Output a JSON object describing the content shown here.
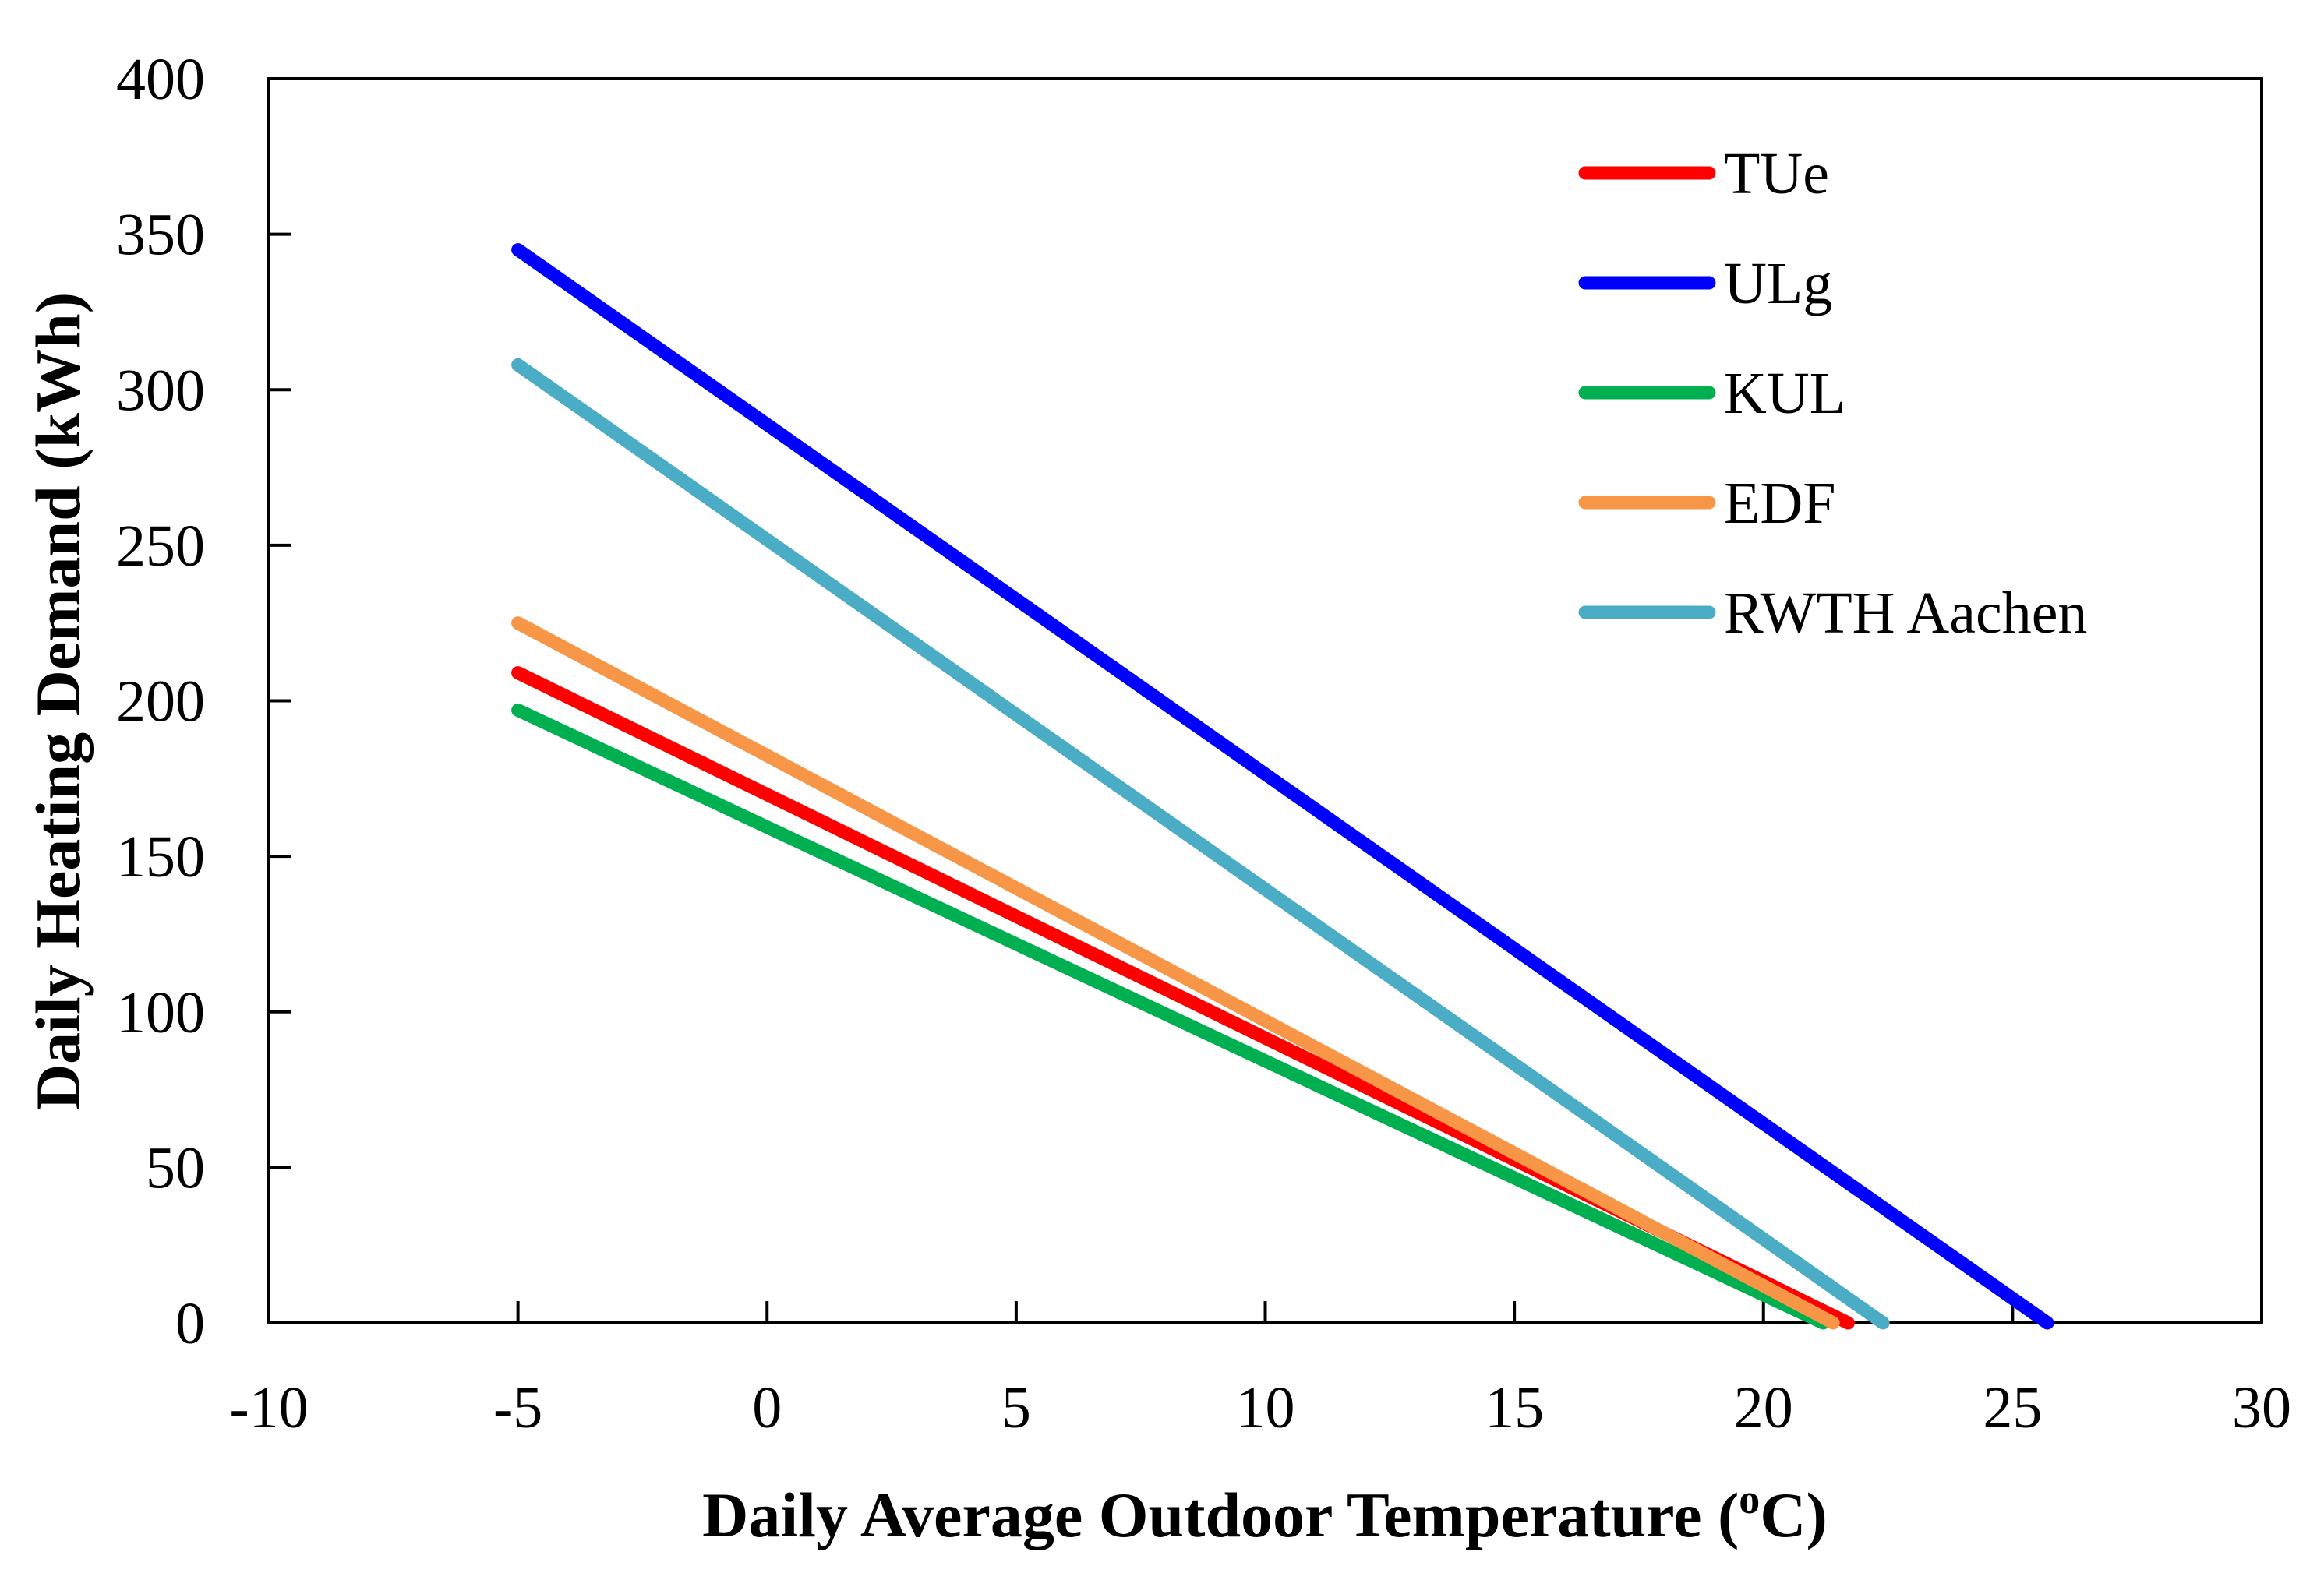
{
  "chart_data": {
    "type": "line",
    "xlabel": "Daily Average Outdoor Temperature (",
    "xlabel_sup": "o",
    "xlabel_unit": "C)",
    "ylabel": "Daily Heating Demand (kWh)",
    "xlim": [
      -10,
      30
    ],
    "ylim": [
      0,
      400
    ],
    "x_ticks": [
      -10,
      -5,
      0,
      5,
      10,
      15,
      20,
      25,
      30
    ],
    "y_ticks": [
      0,
      50,
      100,
      150,
      200,
      250,
      300,
      350,
      400
    ],
    "grid": false,
    "legend_position": "top-right",
    "series": [
      {
        "name": "TUe",
        "color": "#ff0000",
        "x": [
          -5,
          21.7
        ],
        "y": [
          209,
          0
        ]
      },
      {
        "name": "ULg",
        "color": "#0000ff",
        "x": [
          -5,
          25.7
        ],
        "y": [
          345,
          0
        ]
      },
      {
        "name": "KUL",
        "color": "#00b050",
        "x": [
          -5,
          21.2
        ],
        "y": [
          197,
          0
        ]
      },
      {
        "name": "EDF",
        "color": "#f79646",
        "x": [
          -5,
          21.4
        ],
        "y": [
          225,
          0
        ]
      },
      {
        "name": "RWTH Aachen",
        "color": "#4bacc6",
        "x": [
          -5,
          22.4
        ],
        "y": [
          308,
          0
        ]
      }
    ]
  }
}
